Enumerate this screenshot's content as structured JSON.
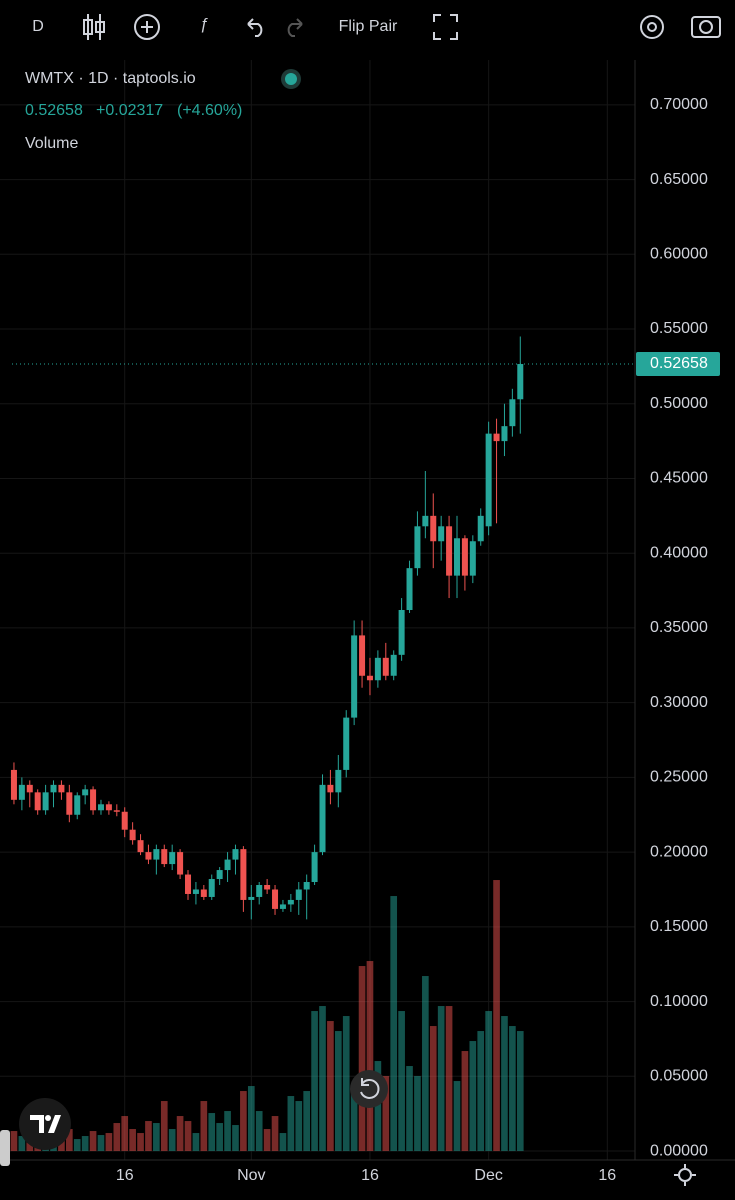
{
  "toolbar": {
    "interval": "D",
    "flip": "Flip Pair"
  },
  "chart_data": {
    "type": "candlestick",
    "title": "WMTX · 1D · taptools.io",
    "last_price": 0.52658,
    "change": "+0.02317",
    "change_percent": "(+4.60%)",
    "volume_label": "Volume",
    "up_color": "#26a69a",
    "down_color": "#ef5350",
    "categories": [
      null,
      null,
      null,
      null,
      null,
      null,
      null,
      null,
      null,
      null,
      null,
      null,
      null,
      null,
      "16",
      null,
      null,
      null,
      null,
      null,
      null,
      null,
      null,
      null,
      null,
      null,
      null,
      null,
      null,
      null,
      "Nov",
      null,
      null,
      null,
      null,
      null,
      null,
      null,
      null,
      null,
      null,
      null,
      null,
      null,
      null,
      "16",
      null,
      null,
      null,
      null,
      null,
      null,
      null,
      null,
      null,
      null,
      null,
      null,
      null,
      null,
      "Dec",
      null,
      null,
      null,
      null,
      null,
      null,
      null,
      null,
      null,
      null,
      null,
      null,
      null,
      null,
      "16",
      null,
      null,
      null
    ],
    "open": [
      0.255,
      0.235,
      0.245,
      0.24,
      0.228,
      0.24,
      0.245,
      0.24,
      0.225,
      0.238,
      0.242,
      0.228,
      0.232,
      0.228,
      0.227,
      0.215,
      0.208,
      0.2,
      0.195,
      0.202,
      0.192,
      0.2,
      0.185,
      0.172,
      0.175,
      0.17,
      0.182,
      0.188,
      0.195,
      0.202,
      0.168,
      0.17,
      0.178,
      0.175,
      0.162,
      0.165,
      0.168,
      0.175,
      0.18,
      0.2,
      0.245,
      0.24,
      0.255,
      0.29,
      0.345,
      0.318,
      0.315,
      0.33,
      0.318,
      0.332,
      0.362,
      0.39,
      0.418,
      0.425,
      0.408,
      0.418,
      0.385,
      0.41,
      0.385,
      0.408,
      0.418,
      0.48,
      0.475,
      0.485,
      0.503,
      null,
      null,
      null,
      null,
      null,
      null,
      null,
      null,
      null,
      null,
      null,
      null,
      null,
      null
    ],
    "high": [
      0.26,
      0.25,
      0.248,
      0.242,
      0.245,
      0.248,
      0.248,
      0.245,
      0.24,
      0.245,
      0.244,
      0.235,
      0.234,
      0.232,
      0.23,
      0.22,
      0.212,
      0.205,
      0.205,
      0.205,
      0.205,
      0.202,
      0.188,
      0.18,
      0.178,
      0.185,
      0.19,
      0.2,
      0.205,
      0.204,
      0.178,
      0.18,
      0.182,
      0.178,
      0.168,
      0.172,
      0.18,
      0.185,
      0.205,
      0.252,
      0.255,
      0.265,
      0.295,
      0.355,
      0.355,
      0.33,
      0.335,
      0.34,
      0.335,
      0.37,
      0.395,
      0.428,
      0.455,
      0.44,
      0.425,
      0.425,
      0.425,
      0.412,
      0.412,
      0.43,
      0.488,
      0.49,
      0.5,
      0.51,
      0.545,
      null,
      null,
      null,
      null,
      null,
      null,
      null,
      null,
      null,
      null,
      null,
      null,
      null,
      null
    ],
    "low": [
      0.232,
      0.228,
      0.23,
      0.225,
      0.225,
      0.23,
      0.235,
      0.22,
      0.222,
      0.232,
      0.225,
      0.225,
      0.225,
      0.224,
      0.21,
      0.205,
      0.198,
      0.192,
      0.185,
      0.19,
      0.188,
      0.182,
      0.168,
      0.165,
      0.168,
      0.168,
      0.178,
      0.18,
      0.185,
      0.16,
      0.155,
      0.165,
      0.172,
      0.158,
      0.16,
      0.16,
      0.158,
      0.155,
      0.178,
      0.198,
      0.232,
      0.23,
      0.25,
      0.285,
      0.31,
      0.305,
      0.31,
      0.315,
      0.315,
      0.328,
      0.36,
      0.385,
      0.41,
      0.39,
      0.395,
      0.37,
      0.37,
      0.375,
      0.38,
      0.405,
      0.412,
      0.42,
      0.465,
      0.478,
      0.48,
      null,
      null,
      null,
      null,
      null,
      null,
      null,
      null,
      null,
      null,
      null,
      null,
      null,
      null
    ],
    "close": [
      0.235,
      0.245,
      0.24,
      0.228,
      0.24,
      0.245,
      0.24,
      0.225,
      0.238,
      0.242,
      0.228,
      0.232,
      0.228,
      0.227,
      0.215,
      0.208,
      0.2,
      0.195,
      0.202,
      0.192,
      0.2,
      0.185,
      0.172,
      0.175,
      0.17,
      0.182,
      0.188,
      0.195,
      0.202,
      0.168,
      0.17,
      0.178,
      0.175,
      0.162,
      0.165,
      0.168,
      0.175,
      0.18,
      0.2,
      0.245,
      0.24,
      0.255,
      0.29,
      0.345,
      0.318,
      0.315,
      0.33,
      0.318,
      0.332,
      0.362,
      0.39,
      0.418,
      0.425,
      0.408,
      0.418,
      0.385,
      0.41,
      0.385,
      0.408,
      0.425,
      0.48,
      0.475,
      0.485,
      0.503,
      0.52658,
      null,
      null,
      null,
      null,
      null,
      null,
      null,
      null,
      null,
      null,
      null,
      null,
      null,
      null
    ],
    "volume": [
      20,
      15,
      12,
      25,
      10,
      18,
      14,
      22,
      12,
      15,
      20,
      16,
      18,
      28,
      35,
      22,
      18,
      30,
      28,
      50,
      22,
      35,
      30,
      18,
      50,
      38,
      28,
      40,
      26,
      60,
      65,
      40,
      22,
      35,
      18,
      55,
      50,
      60,
      140,
      145,
      130,
      120,
      135,
      60,
      185,
      190,
      90,
      75,
      255,
      140,
      85,
      75,
      175,
      125,
      145,
      145,
      70,
      100,
      110,
      120,
      140,
      271,
      135,
      125,
      120,
      null,
      null,
      null,
      null,
      null,
      null,
      null,
      null,
      null,
      null,
      null,
      null,
      null,
      null
    ],
    "ylim": [
      -0.006,
      0.73
    ],
    "yticks": [
      {
        "value": 0,
        "label": "0.00000"
      },
      {
        "value": 0.05,
        "label": "0.05000"
      },
      {
        "value": 0.1,
        "label": "0.10000"
      },
      {
        "value": 0.15,
        "label": "0.15000"
      },
      {
        "value": 0.2,
        "label": "0.20000"
      },
      {
        "value": 0.25,
        "label": "0.25000"
      },
      {
        "value": 0.3,
        "label": "0.30000"
      },
      {
        "value": 0.35,
        "label": "0.35000"
      },
      {
        "value": 0.4,
        "label": "0.40000"
      },
      {
        "value": 0.45,
        "label": "0.45000"
      },
      {
        "value": 0.5,
        "label": "0.50000"
      },
      {
        "value": 0.55,
        "label": "0.55000"
      },
      {
        "value": 0.6,
        "label": "0.60000"
      },
      {
        "value": 0.65,
        "label": "0.65000"
      },
      {
        "value": 0.7,
        "label": "0.70000"
      }
    ],
    "grid": true
  }
}
